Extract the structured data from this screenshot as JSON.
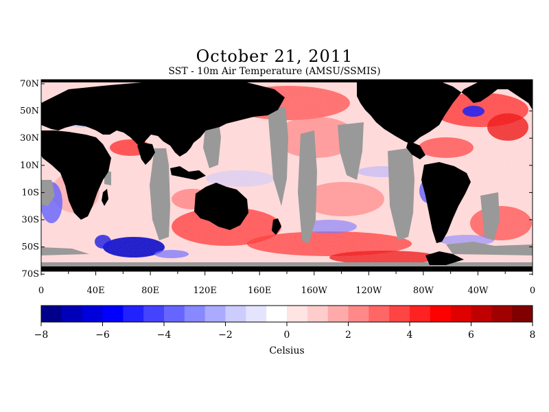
{
  "title": "October 21, 2011",
  "subtitle": "SST - 10m Air Temperature (AMSU/SSMIS)",
  "map": {
    "lat_labels": [
      "70N",
      "50N",
      "30N",
      "10N",
      "10S",
      "30S",
      "50S",
      "70S"
    ],
    "lon_labels": [
      "0",
      "40E",
      "80E",
      "120E",
      "160E",
      "160W",
      "120W",
      "80W",
      "40W",
      "0"
    ],
    "colors": {
      "land": "#000000",
      "no_data": "#999999"
    }
  },
  "colorbar": {
    "min": -8,
    "max": 8,
    "labels": [
      "-8",
      "-6",
      "-4",
      "-2",
      "0",
      "2",
      "4",
      "6",
      "8"
    ],
    "unit_label": "Celsius",
    "colors": [
      "#00008b",
      "#0000b8",
      "#0000dd",
      "#0000ff",
      "#2222ff",
      "#4444ff",
      "#6666ff",
      "#8888ff",
      "#aaaaff",
      "#ccccff",
      "#e4e4ff",
      "#ffffff",
      "#ffe4e4",
      "#ffcccc",
      "#ffaaaa",
      "#ff8888",
      "#ff6666",
      "#ff4444",
      "#ff2222",
      "#ff0000",
      "#e00000",
      "#c00000",
      "#a00000",
      "#800000"
    ]
  }
}
